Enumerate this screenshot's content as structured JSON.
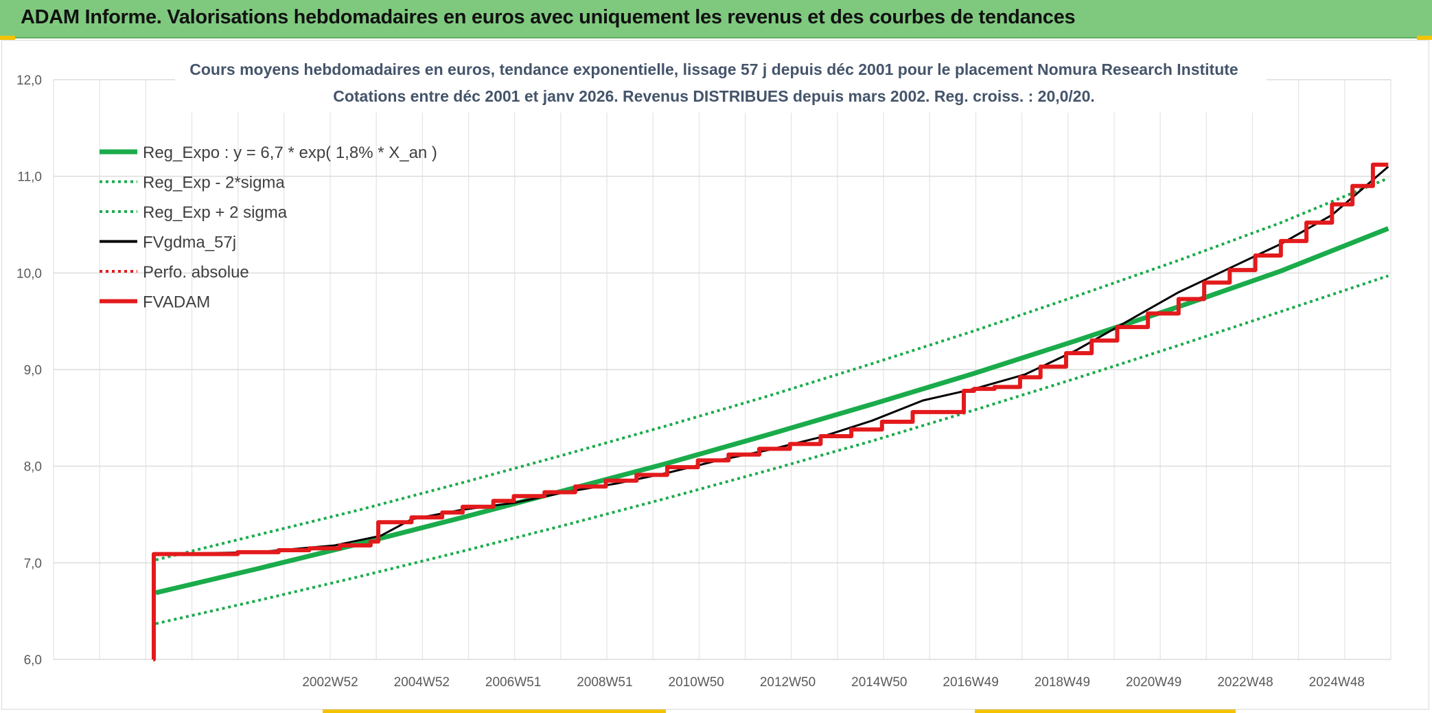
{
  "banner": {
    "title": "ADAM Informe. Valorisations hebdomadaires en euros avec uniquement les revenus et des courbes de tendances",
    "color": "#7fc97f"
  },
  "chart_data": {
    "type": "line",
    "title_line1": "Cours moyens hebdomadaires en euros, tendance exponentielle, lissage 57 j depuis déc 2001 pour le placement Nomura Research Institute",
    "title_line2": "Cotations entre déc 2001 et janv 2026. Revenus DISTRIBUES depuis mars 2002. Reg. croiss. : 20,0/20.",
    "ylim": [
      6.0,
      12.0
    ],
    "y_ticks": [
      "6,0",
      "7,0",
      "8,0",
      "9,0",
      "10,0",
      "11,0",
      "12,0"
    ],
    "x_tick_labels": [
      "2002W52",
      "2004W52",
      "2006W51",
      "2008W51",
      "2010W50",
      "2012W50",
      "2014W50",
      "2016W49",
      "2018W49",
      "2020W49",
      "2022W48",
      "2024W48"
    ],
    "grid": true,
    "legend_placement": "top-left",
    "series": [
      {
        "name": "Reg_Expo : y = 6,7 * exp( 1,8% *  X_an )",
        "color": "#1aab4b",
        "style": "solid-thick",
        "x": [
          2002.0,
          2004.0,
          2006.0,
          2008.0,
          2010.0,
          2012.0,
          2014.0,
          2016.0,
          2018.0,
          2020.0,
          2022.0,
          2024.0,
          2026.1
        ],
        "y": [
          6.69,
          6.94,
          7.2,
          7.47,
          7.75,
          8.03,
          8.33,
          8.64,
          8.96,
          9.3,
          9.65,
          10.02,
          10.46
        ]
      },
      {
        "name": "Reg_Exp - 2*sigma",
        "color": "#1aab4b",
        "style": "dotted",
        "x": [
          2002.0,
          2004.0,
          2006.0,
          2008.0,
          2010.0,
          2012.0,
          2014.0,
          2016.0,
          2018.0,
          2020.0,
          2022.0,
          2024.0,
          2026.1
        ],
        "y": [
          6.37,
          6.61,
          6.86,
          7.12,
          7.39,
          7.67,
          7.96,
          8.26,
          8.58,
          8.91,
          9.25,
          9.6,
          9.97
        ]
      },
      {
        "name": "Reg_Exp + 2 sigma",
        "color": "#1aab4b",
        "style": "dotted",
        "x": [
          2002.0,
          2004.0,
          2006.0,
          2008.0,
          2010.0,
          2012.0,
          2014.0,
          2016.0,
          2018.0,
          2020.0,
          2022.0,
          2024.0,
          2026.1
        ],
        "y": [
          7.03,
          7.29,
          7.55,
          7.83,
          8.12,
          8.42,
          8.73,
          9.06,
          9.4,
          9.76,
          10.13,
          10.52,
          10.98
        ]
      },
      {
        "name": "FVgdma_57j",
        "color": "#000000",
        "style": "solid-thin",
        "x": [
          2002.0,
          2004.0,
          2005.5,
          2006.4,
          2007.0,
          2008.0,
          2009.0,
          2010.0,
          2011.0,
          2012.0,
          2013.0,
          2014.0,
          2015.0,
          2016.0,
          2017.0,
          2018.0,
          2019.0,
          2020.0,
          2021.0,
          2022.0,
          2023.0,
          2024.0,
          2025.0,
          2026.1
        ],
        "y": [
          7.09,
          7.11,
          7.18,
          7.28,
          7.45,
          7.55,
          7.62,
          7.73,
          7.82,
          7.93,
          8.06,
          8.17,
          8.3,
          8.47,
          8.68,
          8.8,
          8.95,
          9.2,
          9.5,
          9.8,
          10.05,
          10.3,
          10.6,
          11.1
        ]
      },
      {
        "name": "Perfo. absolue",
        "color": "#e31a1c",
        "style": "dotted",
        "x": [],
        "y": []
      },
      {
        "name": "FVADAM",
        "color": "#e31a1c",
        "style": "step-thick",
        "x": [
          2001.95,
          2001.96,
          2003.6,
          2004.4,
          2005.0,
          2005.6,
          2006.2,
          2006.35,
          2007.0,
          2007.6,
          2008.0,
          2008.6,
          2009.0,
          2009.6,
          2010.2,
          2010.8,
          2011.4,
          2012.0,
          2012.6,
          2013.2,
          2013.8,
          2014.4,
          2015.0,
          2015.6,
          2016.2,
          2016.8,
          2017.8,
          2018.0,
          2018.4,
          2018.9,
          2019.3,
          2019.8,
          2020.3,
          2020.8,
          2021.4,
          2022.0,
          2022.5,
          2023.0,
          2023.5,
          2024.0,
          2024.5,
          2025.0,
          2025.4,
          2025.8,
          2026.1
        ],
        "y": [
          6.0,
          7.09,
          7.11,
          7.13,
          7.15,
          7.18,
          7.22,
          7.42,
          7.47,
          7.52,
          7.58,
          7.64,
          7.69,
          7.73,
          7.79,
          7.85,
          7.91,
          7.99,
          8.06,
          8.12,
          8.18,
          8.23,
          8.31,
          8.38,
          8.46,
          8.56,
          8.78,
          8.8,
          8.82,
          8.92,
          9.03,
          9.17,
          9.3,
          9.44,
          9.58,
          9.73,
          9.9,
          10.03,
          10.18,
          10.33,
          10.52,
          10.71,
          10.9,
          11.12,
          11.12
        ]
      }
    ]
  }
}
